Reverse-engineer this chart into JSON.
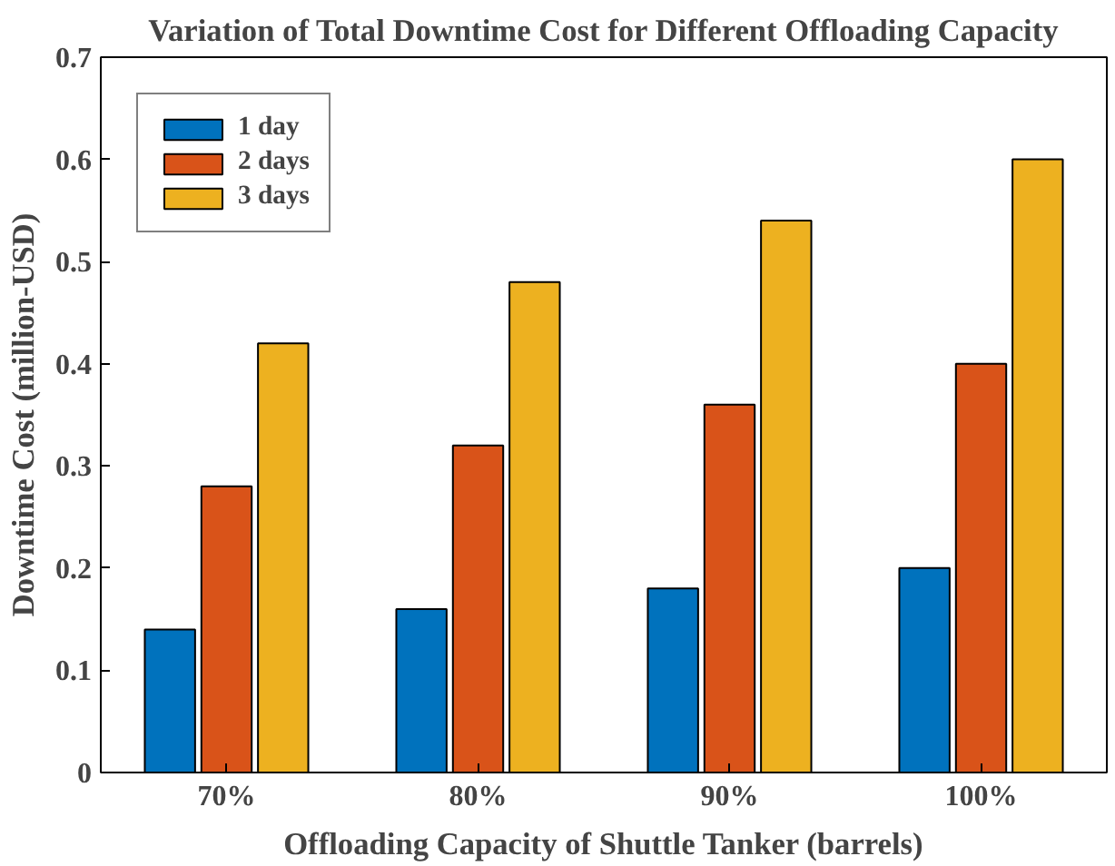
{
  "chart_data": {
    "type": "bar",
    "title": "Variation of Total Downtime Cost for Different Offloading Capacity",
    "xlabel": "Offloading Capacity of Shuttle Tanker (barrels)",
    "ylabel": "Downtime Cost (million-USD)",
    "categories": [
      "70%",
      "80%",
      "90%",
      "100%"
    ],
    "series": [
      {
        "name": "1 day",
        "color": "#0072bd",
        "values": [
          0.14,
          0.16,
          0.18,
          0.2
        ]
      },
      {
        "name": "2 days",
        "color": "#d95319",
        "values": [
          0.28,
          0.32,
          0.36,
          0.4
        ]
      },
      {
        "name": "3 days",
        "color": "#edb120",
        "values": [
          0.42,
          0.48,
          0.54,
          0.6
        ]
      }
    ],
    "ylim": [
      0,
      0.7
    ],
    "yticks": [
      0,
      0.1,
      0.2,
      0.3,
      0.4,
      0.5,
      0.6,
      0.7
    ],
    "grid": false,
    "legend": "top left"
  }
}
